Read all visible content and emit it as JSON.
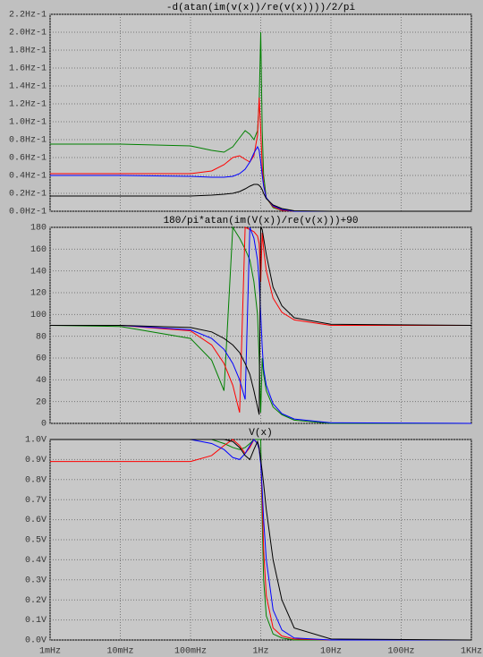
{
  "chart_data": [
    {
      "type": "line",
      "title": "-d(atan(im(v(x))/re(v(x))))/2/pi",
      "x": [
        0.001,
        0.01,
        0.1,
        0.2,
        0.3,
        0.4,
        0.5,
        0.6,
        0.7,
        0.8,
        0.9,
        0.95,
        1,
        1.05,
        1.1,
        1.2,
        1.5,
        2,
        3,
        10,
        1000
      ],
      "series": [
        {
          "color": "#008000",
          "values": [
            0.75,
            0.75,
            0.73,
            0.68,
            0.66,
            0.72,
            0.82,
            0.9,
            0.86,
            0.8,
            0.9,
            1.2,
            2.0,
            0.9,
            0.4,
            0.15,
            0.04,
            0.01,
            0,
            0,
            0
          ]
        },
        {
          "color": "#ff0000",
          "values": [
            0.42,
            0.42,
            0.42,
            0.45,
            0.52,
            0.6,
            0.62,
            0.58,
            0.55,
            0.62,
            0.85,
            1.27,
            0.9,
            0.5,
            0.3,
            0.15,
            0.05,
            0.01,
            0,
            0,
            0
          ]
        },
        {
          "color": "#0000ff",
          "values": [
            0.4,
            0.4,
            0.39,
            0.38,
            0.38,
            0.39,
            0.42,
            0.47,
            0.55,
            0.65,
            0.72,
            0.68,
            0.55,
            0.4,
            0.28,
            0.15,
            0.06,
            0.02,
            0,
            0,
            0
          ]
        },
        {
          "color": "#000000",
          "values": [
            0.17,
            0.17,
            0.17,
            0.18,
            0.19,
            0.2,
            0.22,
            0.25,
            0.28,
            0.3,
            0.3,
            0.29,
            0.27,
            0.24,
            0.2,
            0.14,
            0.07,
            0.03,
            0.005,
            0,
            0
          ]
        }
      ],
      "xlim": [
        0.001,
        1000
      ],
      "log_x": true,
      "grid": true,
      "ylim": [
        0,
        2.2
      ],
      "yticks": [
        {
          "value": 0,
          "label": "0.0Hz-1"
        },
        {
          "value": 0.2,
          "label": "0.2Hz-1"
        },
        {
          "value": 0.4,
          "label": "0.4Hz-1"
        },
        {
          "value": 0.6,
          "label": "0.6Hz-1"
        },
        {
          "value": 0.8,
          "label": "0.8Hz-1"
        },
        {
          "value": 1.0,
          "label": "1.0Hz-1"
        },
        {
          "value": 1.2,
          "label": "1.2Hz-1"
        },
        {
          "value": 1.4,
          "label": "1.4Hz-1"
        },
        {
          "value": 1.6,
          "label": "1.6Hz-1"
        },
        {
          "value": 1.8,
          "label": "1.8Hz-1"
        },
        {
          "value": 2.0,
          "label": "2.0Hz-1"
        },
        {
          "value": 2.2,
          "label": "2.2Hz-1"
        }
      ]
    },
    {
      "type": "line",
      "title": "180/pi*atan(im(V(x))/re(v(x)))+90",
      "x": [
        0.001,
        0.01,
        0.1,
        0.2,
        0.3,
        0.4,
        0.5,
        0.6,
        0.7,
        0.8,
        0.9,
        0.95,
        1,
        1.05,
        1.1,
        1.2,
        1.5,
        2,
        3,
        10,
        1000
      ],
      "series": [
        {
          "color": "#008000",
          "values": [
            90,
            89,
            78,
            58,
            30,
            180,
            170,
            160,
            150,
            130,
            100,
            60,
            10,
            60,
            45,
            30,
            15,
            8,
            3,
            0,
            0
          ]
        },
        {
          "color": "#ff0000",
          "values": [
            90,
            90,
            85,
            72,
            55,
            35,
            10,
            180,
            178,
            176,
            172,
            165,
            130,
            175,
            160,
            140,
            115,
            102,
            95,
            90,
            90
          ]
        },
        {
          "color": "#0000ff",
          "values": [
            90,
            90,
            86,
            78,
            68,
            55,
            40,
            22,
            180,
            170,
            150,
            130,
            100,
            70,
            50,
            35,
            18,
            9,
            4,
            0.5,
            0
          ]
        },
        {
          "color": "#000000",
          "values": [
            90,
            90,
            88,
            84,
            78,
            72,
            65,
            55,
            45,
            30,
            15,
            8,
            180,
            178,
            170,
            155,
            125,
            108,
            97,
            91,
            90
          ]
        }
      ],
      "xlim": [
        0.001,
        1000
      ],
      "log_x": true,
      "grid": true,
      "ylim": [
        0,
        180
      ],
      "yticks": [
        0,
        20,
        40,
        60,
        80,
        100,
        120,
        140,
        160,
        180
      ]
    },
    {
      "type": "line",
      "title": "V(x)",
      "x": [
        0.001,
        0.01,
        0.1,
        0.2,
        0.3,
        0.4,
        0.5,
        0.6,
        0.7,
        0.8,
        0.9,
        0.95,
        1,
        1.05,
        1.1,
        1.2,
        1.5,
        2,
        3,
        10,
        1000
      ],
      "series": [
        {
          "color": "#008000",
          "values": [
            1,
            1,
            1,
            1,
            0.98,
            0.96,
            0.95,
            0.96,
            0.98,
            1,
            1,
            1,
            1,
            0.6,
            0.3,
            0.12,
            0.03,
            0.01,
            0,
            0,
            0
          ]
        },
        {
          "color": "#ff0000",
          "values": [
            0.89,
            0.89,
            0.89,
            0.92,
            0.97,
            1,
            0.97,
            0.93,
            0.96,
            1,
            0.98,
            0.95,
            0.9,
            0.7,
            0.45,
            0.22,
            0.06,
            0.02,
            0.005,
            0,
            0
          ]
        },
        {
          "color": "#0000ff",
          "values": [
            1,
            1,
            1,
            0.98,
            0.95,
            0.91,
            0.9,
            0.93,
            0.97,
            1,
            0.98,
            0.95,
            0.88,
            0.75,
            0.6,
            0.4,
            0.15,
            0.05,
            0.01,
            0,
            0
          ]
        },
        {
          "color": "#000000",
          "values": [
            1,
            1,
            1,
            1,
            1,
            0.99,
            0.96,
            0.92,
            0.9,
            0.95,
            0.99,
            0.96,
            0.9,
            0.84,
            0.78,
            0.65,
            0.4,
            0.2,
            0.06,
            0.005,
            0
          ]
        }
      ],
      "xlim": [
        0.001,
        1000
      ],
      "log_x": true,
      "grid": true,
      "xticks": [
        {
          "value": 0.001,
          "label": "1mHz"
        },
        {
          "value": 0.01,
          "label": "10mHz"
        },
        {
          "value": 0.1,
          "label": "100mHz"
        },
        {
          "value": 1,
          "label": "1Hz"
        },
        {
          "value": 10,
          "label": "10Hz"
        },
        {
          "value": 100,
          "label": "100Hz"
        },
        {
          "value": 1000,
          "label": "1KHz"
        }
      ],
      "ylim": [
        0,
        1.0
      ],
      "yticks": [
        {
          "value": 0,
          "label": "0.0V"
        },
        {
          "value": 0.1,
          "label": "0.1V"
        },
        {
          "value": 0.2,
          "label": "0.2V"
        },
        {
          "value": 0.3,
          "label": "0.3V"
        },
        {
          "value": 0.4,
          "label": "0.4V"
        },
        {
          "value": 0.5,
          "label": "0.5V"
        },
        {
          "value": 0.6,
          "label": "0.6V"
        },
        {
          "value": 0.7,
          "label": "0.7V"
        },
        {
          "value": 0.8,
          "label": "0.8V"
        },
        {
          "value": 0.9,
          "label": "0.9V"
        },
        {
          "value": 1.0,
          "label": "1.0V"
        }
      ]
    }
  ]
}
